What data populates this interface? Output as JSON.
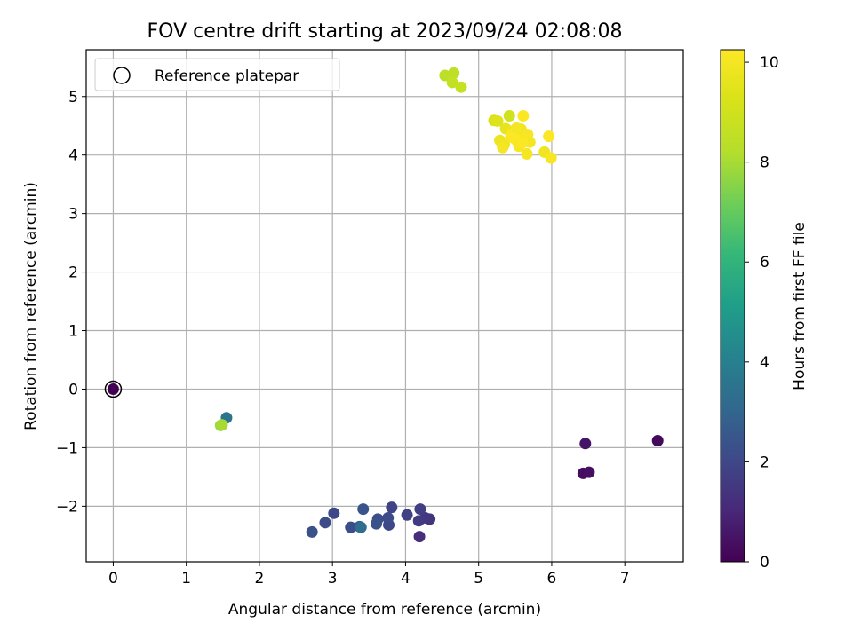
{
  "chart_data": {
    "type": "scatter",
    "title": "FOV centre drift starting at 2023/09/24 02:08:08",
    "xlabel": "Angular distance from reference (arcmin)",
    "ylabel": "Rotation from reference (arcmin)",
    "xlim": [
      -0.37,
      7.8
    ],
    "ylim": [
      -2.95,
      5.8
    ],
    "xticks": [
      0,
      1,
      2,
      3,
      4,
      5,
      6,
      7
    ],
    "yticks": [
      -2,
      -1,
      0,
      1,
      2,
      3,
      4,
      5
    ],
    "xtick_labels": [
      "0",
      "1",
      "2",
      "3",
      "4",
      "5",
      "6",
      "7"
    ],
    "ytick_labels": [
      "−2",
      "−1",
      "0",
      "1",
      "2",
      "3",
      "4",
      "5"
    ],
    "grid": true,
    "legend": {
      "location": "upper-left",
      "entries": [
        "Reference platepar"
      ]
    },
    "colorbar": {
      "label": "Hours from first FF file",
      "range": [
        0,
        10.25
      ],
      "ticks": [
        0,
        2,
        4,
        6,
        8,
        10
      ],
      "tick_labels": [
        "0",
        "2",
        "4",
        "6",
        "8",
        "10"
      ],
      "colormap": "viridis"
    },
    "reference_point": {
      "x": 0,
      "y": 0
    },
    "points": [
      {
        "x": 0,
        "y": 0,
        "c": 0
      },
      {
        "x": 6.43,
        "y": -1.44,
        "c": 0.3
      },
      {
        "x": 6.51,
        "y": -1.42,
        "c": 0.4
      },
      {
        "x": 6.46,
        "y": -0.93,
        "c": 0.5
      },
      {
        "x": 7.45,
        "y": -0.88,
        "c": 0.2
      },
      {
        "x": 4.19,
        "y": -2.52,
        "c": 1.2
      },
      {
        "x": 4.33,
        "y": -2.22,
        "c": 1.4
      },
      {
        "x": 4.27,
        "y": -2.2,
        "c": 1.5
      },
      {
        "x": 4.18,
        "y": -2.25,
        "c": 1.6
      },
      {
        "x": 4.2,
        "y": -2.05,
        "c": 1.7
      },
      {
        "x": 4.02,
        "y": -2.15,
        "c": 1.8
      },
      {
        "x": 3.81,
        "y": -2.02,
        "c": 1.9
      },
      {
        "x": 3.77,
        "y": -2.32,
        "c": 2.0
      },
      {
        "x": 3.76,
        "y": -2.2,
        "c": 2.1
      },
      {
        "x": 3.62,
        "y": -2.22,
        "c": 2.2
      },
      {
        "x": 3.6,
        "y": -2.3,
        "c": 2.3
      },
      {
        "x": 3.42,
        "y": -2.05,
        "c": 2.4
      },
      {
        "x": 3.37,
        "y": -2.35,
        "c": 2.5
      },
      {
        "x": 3.25,
        "y": -2.36,
        "c": 2.2
      },
      {
        "x": 3.02,
        "y": -2.12,
        "c": 2.0
      },
      {
        "x": 2.9,
        "y": -2.28,
        "c": 2.1
      },
      {
        "x": 2.72,
        "y": -2.44,
        "c": 2.3
      },
      {
        "x": 3.39,
        "y": -2.36,
        "c": 3.3
      },
      {
        "x": 1.55,
        "y": -0.49,
        "c": 3.5
      },
      {
        "x": 1.47,
        "y": -0.62,
        "c": 7.8
      },
      {
        "x": 1.49,
        "y": -0.61,
        "c": 8.0
      },
      {
        "x": 4.54,
        "y": 5.36,
        "c": 8.4
      },
      {
        "x": 4.66,
        "y": 5.4,
        "c": 8.5
      },
      {
        "x": 4.64,
        "y": 5.24,
        "c": 8.6
      },
      {
        "x": 4.76,
        "y": 5.16,
        "c": 8.7
      },
      {
        "x": 5.42,
        "y": 4.67,
        "c": 9.0
      },
      {
        "x": 5.21,
        "y": 4.59,
        "c": 9.3
      },
      {
        "x": 5.26,
        "y": 4.58,
        "c": 9.4
      },
      {
        "x": 5.61,
        "y": 4.67,
        "c": 10.2
      },
      {
        "x": 5.37,
        "y": 4.45,
        "c": 9.6
      },
      {
        "x": 5.47,
        "y": 4.41,
        "c": 9.7
      },
      {
        "x": 5.53,
        "y": 4.38,
        "c": 9.8
      },
      {
        "x": 5.58,
        "y": 4.44,
        "c": 9.9
      },
      {
        "x": 5.62,
        "y": 4.3,
        "c": 10.0
      },
      {
        "x": 5.67,
        "y": 4.35,
        "c": 10.1
      },
      {
        "x": 5.7,
        "y": 4.22,
        "c": 10.0
      },
      {
        "x": 5.29,
        "y": 4.25,
        "c": 9.8
      },
      {
        "x": 5.35,
        "y": 4.18,
        "c": 9.9
      },
      {
        "x": 5.33,
        "y": 4.13,
        "c": 10.0
      },
      {
        "x": 5.44,
        "y": 4.31,
        "c": 10.1
      },
      {
        "x": 5.5,
        "y": 4.27,
        "c": 10.2
      },
      {
        "x": 5.55,
        "y": 4.15,
        "c": 10.1
      },
      {
        "x": 5.6,
        "y": 4.21,
        "c": 10.2
      },
      {
        "x": 5.66,
        "y": 4.02,
        "c": 10.0
      },
      {
        "x": 5.9,
        "y": 4.05,
        "c": 9.9
      },
      {
        "x": 5.99,
        "y": 3.95,
        "c": 10.1
      },
      {
        "x": 5.96,
        "y": 4.32,
        "c": 10.2
      },
      {
        "x": 5.46,
        "y": 4.36,
        "c": 10.2
      },
      {
        "x": 5.52,
        "y": 4.46,
        "c": 10.0
      }
    ]
  }
}
